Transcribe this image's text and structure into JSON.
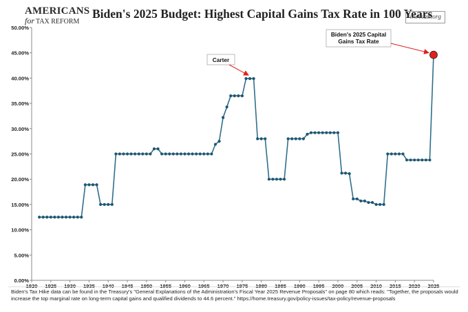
{
  "header": {
    "logo_line1": "AMERICANS",
    "logo_line2_for": "for",
    "logo_line2_rest": "TAX REFORM",
    "title": "Biden's 2025 Budget: Highest Capital Gains Tax Rate in 100 Years",
    "url": "www.atr.org"
  },
  "footnote": "Biden's Tax Hike data can be found in the Treasury's \"General Explanations of the Administration's Fiscal Year 2025 Revenue Proposals\" on page 80 which reads: \"Together, the proposals would increase the top marginal rate on long-term capital gains and qualified dividends to 44.6 percent.\"  https://home.treasury.gov/policy-issues/tax-policy/revenue-proposals",
  "colors": {
    "line": "#2e6e8c",
    "marker": "#1f5670",
    "highlight": "#e0201c",
    "arrow": "#e0201c"
  },
  "chart_data": {
    "type": "line",
    "title": "Biden's 2025 Budget: Highest Capital Gains Tax Rate in 100 Years",
    "xlabel": "",
    "ylabel": "",
    "xlim": [
      1920,
      2025
    ],
    "ylim": [
      0,
      50
    ],
    "x_ticks": [
      1920,
      1925,
      1930,
      1935,
      1940,
      1945,
      1950,
      1955,
      1960,
      1965,
      1970,
      1975,
      1980,
      1985,
      1990,
      1995,
      2000,
      2005,
      2010,
      2015,
      2020,
      2025
    ],
    "y_ticks": [
      "0.00%",
      "5.00%",
      "10.00%",
      "15.00%",
      "20.00%",
      "25.00%",
      "30.00%",
      "35.00%",
      "40.00%",
      "45.00%",
      "50.00%"
    ],
    "y_tick_values": [
      0,
      5,
      10,
      15,
      20,
      25,
      30,
      35,
      40,
      45,
      50
    ],
    "grid": false,
    "series": [
      {
        "x": [
          1922,
          1923,
          1924,
          1925,
          1926,
          1927,
          1928,
          1929,
          1930,
          1931,
          1932,
          1933,
          1934,
          1935,
          1936,
          1937,
          1938,
          1939,
          1940,
          1941,
          1942,
          1943,
          1944,
          1945,
          1946,
          1947,
          1948,
          1949,
          1950,
          1951,
          1952,
          1953,
          1954,
          1955,
          1956,
          1957,
          1958,
          1959,
          1960,
          1961,
          1962,
          1963,
          1964,
          1965,
          1966,
          1967,
          1968,
          1969,
          1970,
          1971,
          1972,
          1973,
          1974,
          1975,
          1976,
          1977,
          1978,
          1979,
          1980,
          1981,
          1982,
          1983,
          1984,
          1985,
          1986,
          1987,
          1988,
          1989,
          1990,
          1991,
          1992,
          1993,
          1994,
          1995,
          1996,
          1997,
          1998,
          1999,
          2000,
          2001,
          2002,
          2003,
          2004,
          2005,
          2006,
          2007,
          2008,
          2009,
          2010,
          2011,
          2012,
          2013,
          2014,
          2015,
          2016,
          2017,
          2018,
          2019,
          2020,
          2021,
          2022,
          2023,
          2024,
          2025
        ],
        "values": [
          12.5,
          12.5,
          12.5,
          12.5,
          12.5,
          12.5,
          12.5,
          12.5,
          12.5,
          12.5,
          12.5,
          12.5,
          18.9,
          18.9,
          18.9,
          18.9,
          15,
          15,
          15,
          15,
          25,
          25,
          25,
          25,
          25,
          25,
          25,
          25,
          25,
          25,
          26,
          26,
          25,
          25,
          25,
          25,
          25,
          25,
          25,
          25,
          25,
          25,
          25,
          25,
          25,
          25,
          26.9,
          27.5,
          32.2,
          34.3,
          36.5,
          36.5,
          36.5,
          36.5,
          39.9,
          39.9,
          39.9,
          28,
          28,
          28,
          20,
          20,
          20,
          20,
          20,
          28,
          28,
          28,
          28,
          28,
          28.9,
          29.2,
          29.2,
          29.2,
          29.2,
          29.2,
          29.2,
          29.2,
          29.2,
          21.2,
          21.2,
          21.1,
          16.1,
          16.1,
          15.7,
          15.7,
          15.4,
          15.4,
          15.0,
          15.0,
          15.0,
          25.0,
          25.0,
          25.0,
          25.0,
          25.0,
          23.8,
          23.8,
          23.8,
          23.8,
          23.8,
          23.8,
          23.8,
          44.6
        ]
      }
    ],
    "annotations": [
      {
        "text_lines": [
          "Carter"
        ],
        "target_year": 1977
      },
      {
        "text_lines": [
          "Biden's 2025 Capital",
          "Gains Tax Rate"
        ],
        "target_year": 2025
      }
    ]
  }
}
